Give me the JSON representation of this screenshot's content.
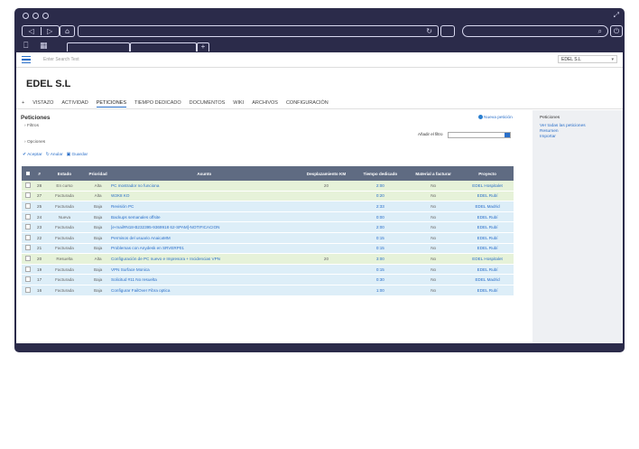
{
  "browser": {
    "tab_plus": "+",
    "nav_back": "◁",
    "nav_fwd": "▷",
    "home_icon": "⌂"
  },
  "app": {
    "search_placeholder": "Enter Search Text",
    "account_select": "EDEL S.L"
  },
  "account": {
    "name": "EDEL S.L"
  },
  "tabs": {
    "expand": "+",
    "items": [
      "VISTAZO",
      "ACTIVIDAD",
      "PETICIONES",
      "TIEMPO DEDICADO",
      "DOCUMENTOS",
      "WIKI",
      "ARCHIVOS",
      "CONFIGURACIÓN"
    ],
    "active": "PETICIONES"
  },
  "panel": {
    "title": "Peticiones",
    "new_link": "Nueva petición",
    "filters": "Filtros",
    "options": "Opciones",
    "add_filter": "Añadir el filtro",
    "accept": "Aceptar",
    "cancel": "Anular",
    "save": "Guardar"
  },
  "sidebar": {
    "heading": "Peticiones",
    "links": [
      "Ver todas las peticiones",
      "Resumen",
      "Importar"
    ]
  },
  "table": {
    "headers": [
      "#",
      "Estado",
      "Prioridad",
      "Asunto",
      "Desplazamiento KM",
      "Tiempo dedicado",
      "Material a facturar",
      "Proyecto"
    ],
    "rows": [
      {
        "id": "28",
        "estado": "En curso",
        "prioridad": "Alta",
        "asunto": "PC mostrador no funciona",
        "km": "20",
        "tiempo": "2:00",
        "material": "No",
        "proyecto": "EDEL Hospitalet",
        "color": "green"
      },
      {
        "id": "27",
        "estado": "Facturada",
        "prioridad": "Alta",
        "asunto": "W2K8 KO",
        "km": "",
        "tiempo": "0:20",
        "material": "No",
        "proyecto": "EDEL Rubí",
        "color": "green"
      },
      {
        "id": "25",
        "estado": "Facturada",
        "prioridad": "Baja",
        "asunto": "Revisión PC",
        "km": "",
        "tiempo": "2:33",
        "material": "No",
        "proyecto": "EDEL Madrid",
        "color": "blue"
      },
      {
        "id": "24",
        "estado": "Nueva",
        "prioridad": "Baja",
        "asunto": "Backups semanales offsite",
        "km": "",
        "tiempo": "0:00",
        "material": "No",
        "proyecto": "EDEL Rubí",
        "color": "blue"
      },
      {
        "id": "23",
        "estado": "Facturada",
        "prioridad": "Baja",
        "asunto": "[e-mail#N18-B232395-9369918 62-SPAM]-NOTIFICACION",
        "km": "",
        "tiempo": "2:00",
        "material": "No",
        "proyecto": "EDEL Rubí",
        "color": "blue"
      },
      {
        "id": "22",
        "estado": "Facturada",
        "prioridad": "Baja",
        "asunto": "Permisos del usuario AnaicaMM",
        "km": "",
        "tiempo": "0:15",
        "material": "No",
        "proyecto": "EDEL Rubí",
        "color": "blue"
      },
      {
        "id": "21",
        "estado": "Facturada",
        "prioridad": "Baja",
        "asunto": "Problemas con Anydesk en SRVERP01",
        "km": "",
        "tiempo": "0:15",
        "material": "No",
        "proyecto": "EDEL Rubí",
        "color": "blue"
      },
      {
        "id": "20",
        "estado": "Resuelta",
        "prioridad": "Alta",
        "asunto": "Configuración de PC nuevo e Impresora + Incidencias VPN",
        "km": "20",
        "tiempo": "3:00",
        "material": "No",
        "proyecto": "EDEL Hospitalet",
        "color": "green"
      },
      {
        "id": "19",
        "estado": "Facturada",
        "prioridad": "Baja",
        "asunto": "VPN Surface Monica",
        "km": "",
        "tiempo": "0:15",
        "material": "No",
        "proyecto": "EDEL Rubí",
        "color": "blue"
      },
      {
        "id": "17",
        "estado": "Facturada",
        "prioridad": "Baja",
        "asunto": "Solicitud #11 No resuelta",
        "km": "",
        "tiempo": "0:30",
        "material": "No",
        "proyecto": "EDEL Madrid",
        "color": "blue"
      },
      {
        "id": "16",
        "estado": "Facturada",
        "prioridad": "Baja",
        "asunto": "Configurar FailOver Fibra optica",
        "km": "",
        "tiempo": "1:00",
        "material": "No",
        "proyecto": "EDEL Rubí",
        "color": "blue"
      }
    ]
  }
}
